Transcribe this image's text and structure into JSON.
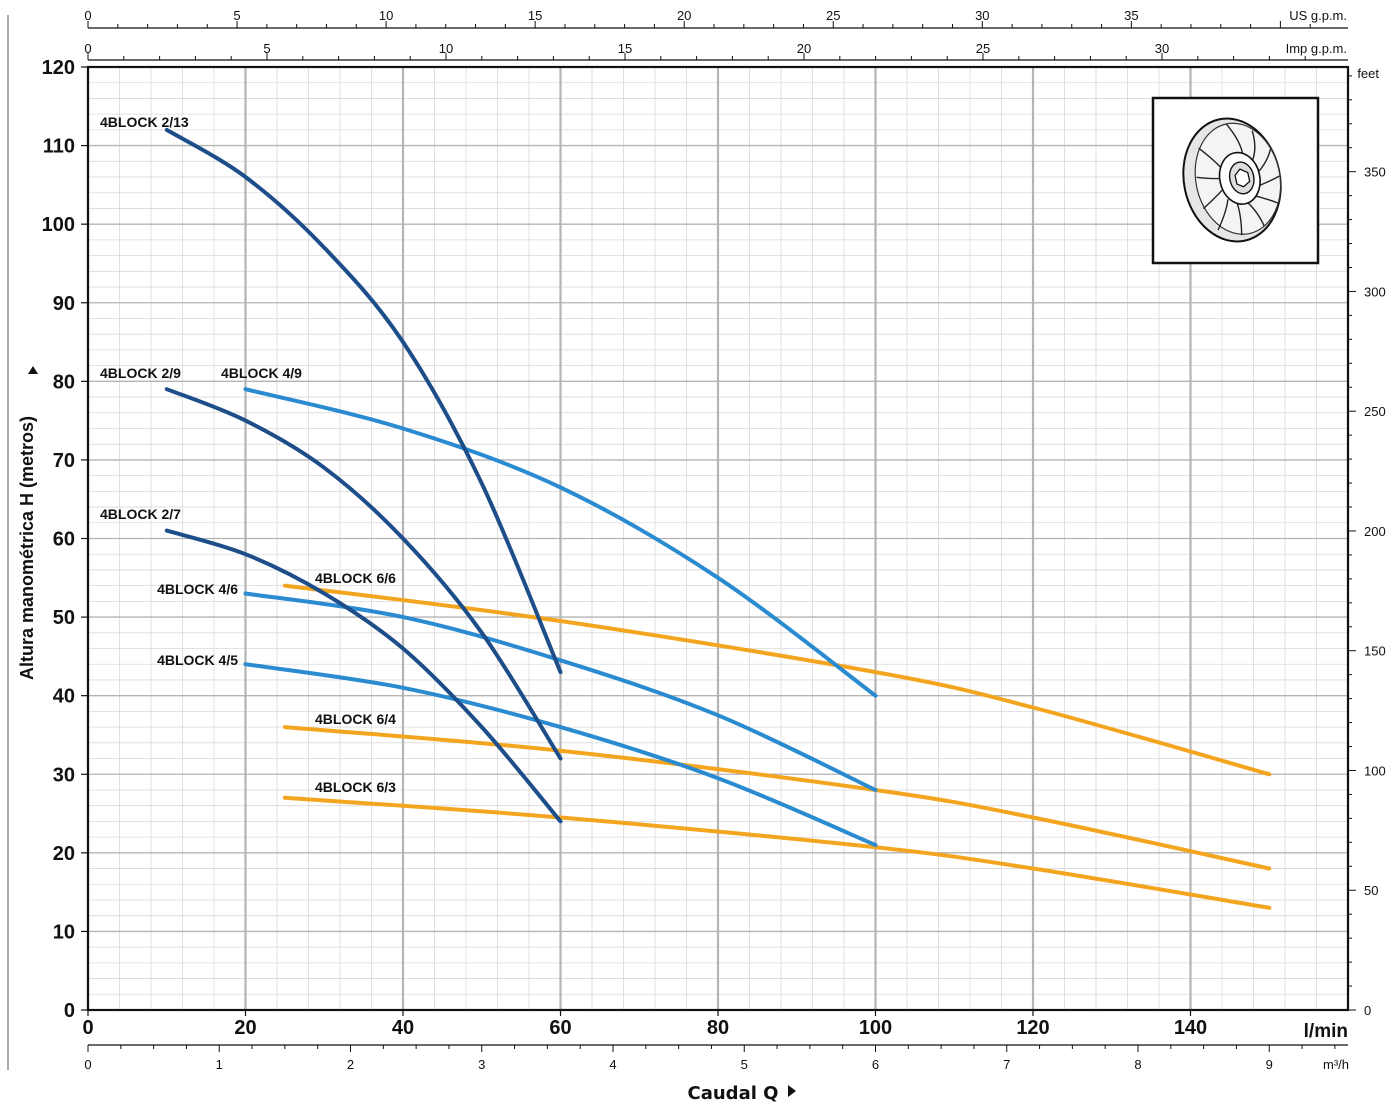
{
  "chart_data": {
    "type": "line",
    "title": "",
    "ylabel": "Altura manométrica H (metros)",
    "xlabel": "Caudal Q",
    "x_unit": "l/min",
    "ylim": [
      0,
      120
    ],
    "xlim": [
      0,
      160
    ],
    "y_ticks": [
      0,
      10,
      20,
      30,
      40,
      50,
      60,
      70,
      80,
      90,
      100,
      110,
      120
    ],
    "x_ticks": [
      0,
      20,
      40,
      60,
      80,
      100,
      120,
      140
    ],
    "secondary_axes": {
      "feet": {
        "label": "feet",
        "ticks": [
          0,
          50,
          100,
          150,
          200,
          250,
          300,
          350
        ]
      },
      "m3h": {
        "label": "m³/h",
        "ticks": [
          0,
          1,
          2,
          3,
          4,
          5,
          6,
          7,
          8,
          9
        ]
      },
      "us_gpm": {
        "label": "US g.p.m.",
        "ticks": [
          0,
          5,
          10,
          15,
          20,
          25,
          30,
          35
        ]
      },
      "imp_gpm": {
        "label": "Imp g.p.m.",
        "ticks": [
          0,
          5,
          10,
          15,
          20,
          25,
          30
        ]
      }
    },
    "grid": true,
    "series": [
      {
        "name": "4BLOCK 2/13",
        "color": "#1d4e8a",
        "points": [
          [
            10,
            112
          ],
          [
            20,
            106
          ],
          [
            30,
            97
          ],
          [
            40,
            85
          ],
          [
            50,
            67
          ],
          [
            60,
            43
          ]
        ]
      },
      {
        "name": "4BLOCK 2/9",
        "color": "#1d4e8a",
        "points": [
          [
            10,
            79
          ],
          [
            20,
            75
          ],
          [
            30,
            69
          ],
          [
            40,
            60
          ],
          [
            50,
            48
          ],
          [
            60,
            32
          ]
        ]
      },
      {
        "name": "4BLOCK 2/7",
        "color": "#1d4e8a",
        "points": [
          [
            10,
            61
          ],
          [
            20,
            58
          ],
          [
            30,
            53
          ],
          [
            40,
            46
          ],
          [
            50,
            36
          ],
          [
            60,
            24
          ]
        ]
      },
      {
        "name": "4BLOCK 4/9",
        "color": "#2a8bd0",
        "points": [
          [
            20,
            79
          ],
          [
            40,
            74
          ],
          [
            60,
            66.5
          ],
          [
            80,
            55
          ],
          [
            100,
            40
          ]
        ]
      },
      {
        "name": "4BLOCK 4/6",
        "color": "#2a8bd0",
        "points": [
          [
            20,
            53
          ],
          [
            40,
            50
          ],
          [
            60,
            44.5
          ],
          [
            80,
            37.5
          ],
          [
            100,
            28
          ]
        ]
      },
      {
        "name": "4BLOCK 4/5",
        "color": "#2a8bd0",
        "points": [
          [
            20,
            44
          ],
          [
            40,
            41
          ],
          [
            60,
            36
          ],
          [
            80,
            29.5
          ],
          [
            100,
            21
          ]
        ]
      },
      {
        "name": "4BLOCK 6/6",
        "color": "#f4a51f",
        "points": [
          [
            25,
            54
          ],
          [
            60,
            49.5
          ],
          [
            100,
            43
          ],
          [
            120,
            38.5
          ],
          [
            150,
            30
          ]
        ]
      },
      {
        "name": "4BLOCK 6/4",
        "color": "#f4a51f",
        "points": [
          [
            25,
            36
          ],
          [
            60,
            33
          ],
          [
            100,
            28
          ],
          [
            120,
            24.5
          ],
          [
            150,
            18
          ]
        ]
      },
      {
        "name": "4BLOCK 6/3",
        "color": "#f4a51f",
        "points": [
          [
            25,
            27
          ],
          [
            60,
            24.5
          ],
          [
            100,
            20.7
          ],
          [
            120,
            18
          ],
          [
            150,
            13
          ]
        ]
      }
    ],
    "inset": {
      "depicts": "impeller",
      "icon": "impeller-icon"
    }
  }
}
